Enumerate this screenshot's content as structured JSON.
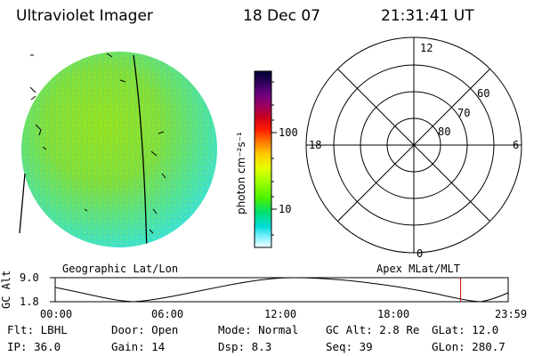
{
  "header": {
    "instrument": "Ultraviolet Imager",
    "date": "18 Dec 07",
    "time": "21:31:41 UT"
  },
  "colorbar": {
    "unit_label": "photon cm⁻²s⁻¹",
    "ticks": [
      "100",
      "10"
    ],
    "colors": [
      "#000033",
      "#2b0055",
      "#6a0080",
      "#a00060",
      "#c8001e",
      "#ff1a00",
      "#ff5a00",
      "#ff9600",
      "#ffd200",
      "#e6ff00",
      "#a8ff00",
      "#5cff00",
      "#00f05a",
      "#00e0c8",
      "#70f0ff",
      "#e8ffff"
    ]
  },
  "polar_plot": {
    "lat_labels": [
      "60",
      "70",
      "80"
    ],
    "mlt_labels": [
      "12",
      "18",
      "6",
      "0"
    ],
    "caption": "Apex MLat/MLT"
  },
  "geo_caption": "Geographic Lat/Lon",
  "orbit_plot": {
    "axis_label": "GC Alt",
    "y_ticks": [
      "9.0",
      "1.8"
    ],
    "x_ticks": [
      "00:00",
      "06:00",
      "12:00",
      "18:00",
      "23:59"
    ],
    "current_time_fraction": 0.895,
    "marker_color": "#cc0000"
  },
  "footer": {
    "row1": [
      {
        "label": "Flt:",
        "value": "LBHL"
      },
      {
        "label": "Door:",
        "value": "Open"
      },
      {
        "label": "Mode:",
        "value": "Normal"
      },
      {
        "label": "GC Alt:",
        "value": "2.8 Re"
      },
      {
        "label": "GLat:",
        "value": "12.0"
      }
    ],
    "row2": [
      {
        "label": "IP:",
        "value": "36.0"
      },
      {
        "label": "Gain:",
        "value": "14"
      },
      {
        "label": "Dsp:",
        "value": "8.3"
      },
      {
        "label": "Seq:",
        "value": "39"
      },
      {
        "label": "GLon:",
        "value": "280.7"
      }
    ]
  }
}
